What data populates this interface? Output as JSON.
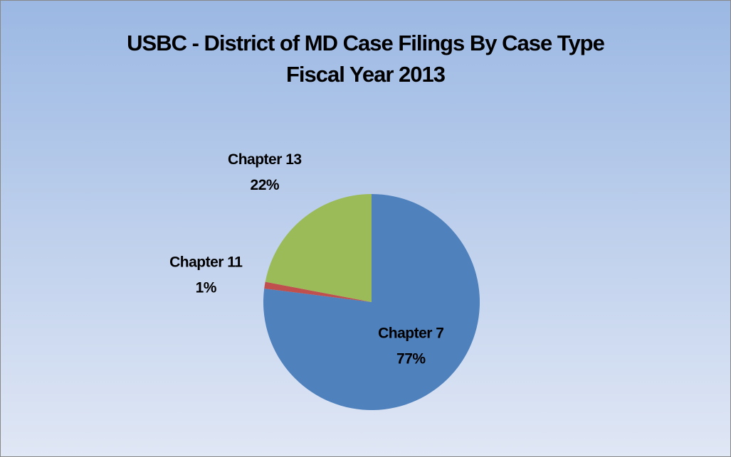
{
  "chart_data": {
    "type": "pie",
    "title": "USBC - District of MD Case Filings By Case Type",
    "subtitle": "Fiscal Year 2013",
    "categories": [
      "Chapter 7",
      "Chapter 11",
      "Chapter 13"
    ],
    "values": [
      77,
      1,
      22
    ],
    "value_labels": [
      "77%",
      "1%",
      "22%"
    ],
    "colors": [
      "#4f81bd",
      "#c0504d",
      "#9bbb59"
    ]
  }
}
